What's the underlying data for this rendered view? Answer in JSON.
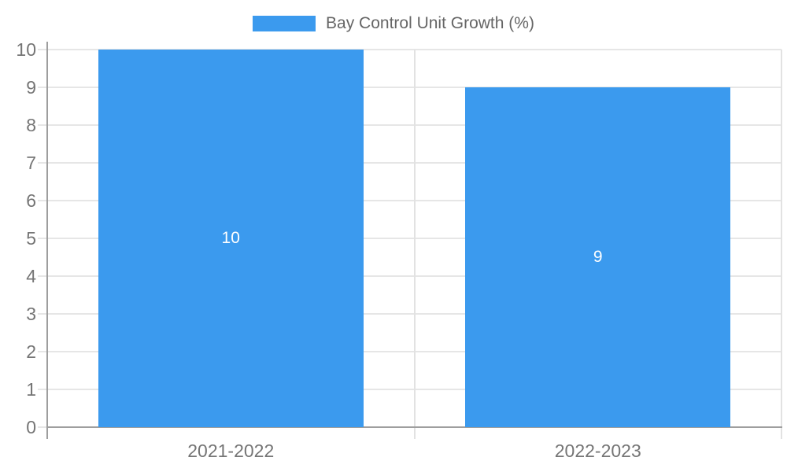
{
  "chart_data": {
    "type": "bar",
    "title": "Bay Control Unit Growth (%)",
    "categories": [
      "2021-2022",
      "2022-2023"
    ],
    "series": [
      {
        "name": "Bay Control Unit Growth (%)",
        "values": [
          10,
          9
        ]
      }
    ],
    "values": [
      10,
      9
    ],
    "bar_labels": [
      "10",
      "9"
    ],
    "ylim": [
      0,
      10
    ],
    "yticks": [
      0,
      1,
      2,
      3,
      4,
      5,
      6,
      7,
      8,
      9,
      10
    ],
    "grid": true,
    "legend_position": "top",
    "xlabel": "",
    "ylabel": ""
  },
  "legend": {
    "label": "Bay Control Unit Growth (%)"
  },
  "colors": {
    "bar": "#3b9aee",
    "grid": "#e6e6e6",
    "axis": "#9e9e9e",
    "tick_text": "#757575",
    "legend_text": "#666666",
    "bar_label_text": "#ffffff"
  }
}
